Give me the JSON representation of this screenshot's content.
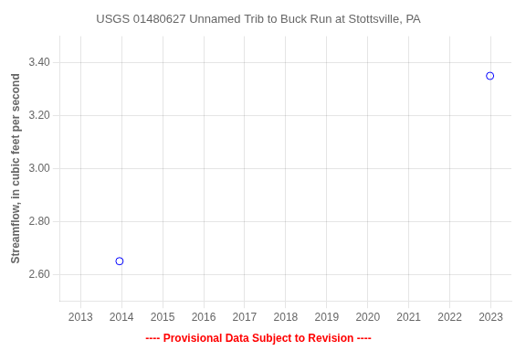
{
  "chart_data": {
    "type": "scatter",
    "title": "USGS 01480627 Unnamed Trib to Buck Run at Stottsville, PA",
    "y_label": "Streamflow, in cubic feet per second",
    "x": [
      2013.95,
      2022.98
    ],
    "values": [
      2.65,
      3.35
    ],
    "color": "#0000ff",
    "marker": "circle",
    "xlim": [
      2012.5,
      2023.5
    ],
    "xticks": [
      2013,
      2014,
      2015,
      2016,
      2017,
      2018,
      2019,
      2020,
      2021,
      2022,
      2023
    ],
    "ylim": [
      2.5,
      3.5
    ],
    "yticks": [
      {
        "value": 2.6,
        "label": "2.60"
      },
      {
        "value": 2.8,
        "label": "2.80"
      },
      {
        "value": 3.0,
        "label": "3.00"
      },
      {
        "value": 3.2,
        "label": "3.20"
      },
      {
        "value": 3.4,
        "label": "3.40"
      }
    ],
    "grid": true,
    "annotations": [
      {
        "text": "---- Provisional Data Subject to Revision ----",
        "color": "#ff0000"
      }
    ]
  }
}
